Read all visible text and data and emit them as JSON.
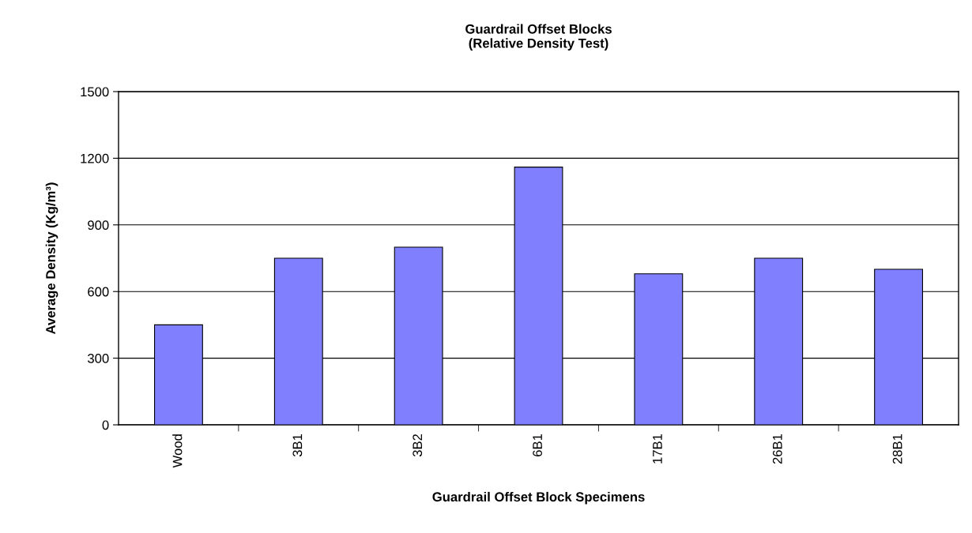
{
  "chart_data": {
    "type": "bar",
    "title": "Guardrail Offset Blocks\n(Relative Density Test)",
    "xlabel": "Guardrail Offset Block Specimens",
    "ylabel": "Average Density (Kg/m³)",
    "categories": [
      "Wood",
      "3B1",
      "3B2",
      "6B1",
      "17B1",
      "26B1",
      "28B1"
    ],
    "values": [
      450,
      750,
      800,
      1160,
      680,
      750,
      700
    ],
    "color": "#8080ff",
    "ylim": [
      0,
      1500
    ],
    "yticks": [
      0,
      300,
      600,
      900,
      1200,
      1500
    ],
    "grid": "y",
    "legend": false
  }
}
